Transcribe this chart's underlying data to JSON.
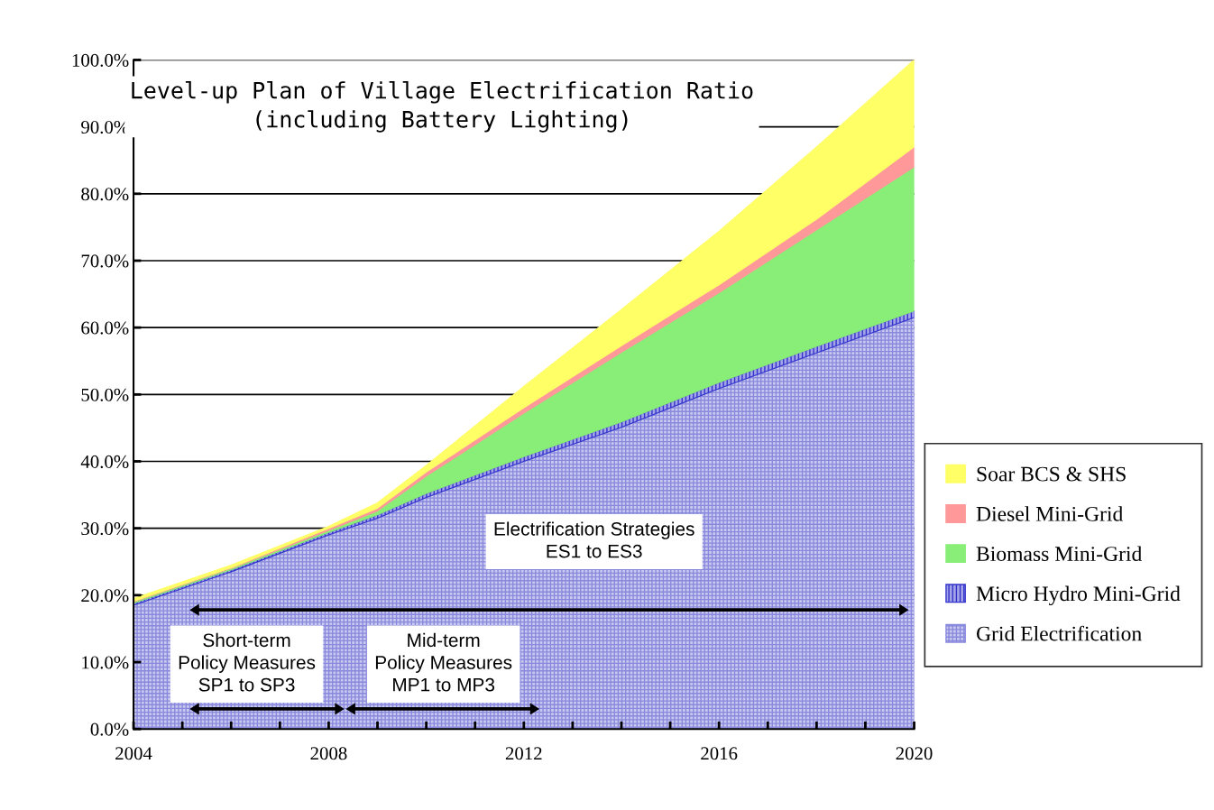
{
  "chart_data": {
    "type": "area",
    "stacked": true,
    "title": "Level-up Plan of Village Electrification Ratio\n(including Battery Lighting)",
    "x": [
      2004,
      2006,
      2008,
      2009,
      2010,
      2012,
      2014,
      2016,
      2018,
      2020
    ],
    "series": [
      {
        "name": "Grid Electrification",
        "color": "#8888dd",
        "values": [
          18.5,
          23.5,
          29.0,
          31.5,
          34.6,
          40.0,
          45.1,
          50.9,
          56.2,
          61.5
        ]
      },
      {
        "name": "Micro Hydro Mini-Grid",
        "color": "#3333cc",
        "values": [
          0.3,
          0.3,
          0.4,
          0.5,
          0.6,
          0.7,
          0.8,
          0.9,
          1.0,
          1.0
        ]
      },
      {
        "name": "Biomass Mini-Grid",
        "color": "#88ee77",
        "values": [
          0.2,
          0.2,
          0.3,
          0.6,
          2.6,
          6.5,
          10.4,
          13.4,
          17.4,
          21.5
        ]
      },
      {
        "name": "Diesel Mini-Grid",
        "color": "#ff9999",
        "values": [
          0.1,
          0.1,
          0.3,
          0.4,
          0.6,
          0.8,
          1.0,
          1.2,
          1.6,
          3.0
        ]
      },
      {
        "name": "Soar BCS & SHS",
        "color": "#ffff66",
        "values": [
          0.4,
          0.4,
          0.3,
          0.8,
          1.0,
          3.2,
          5.4,
          8.0,
          10.8,
          13.0
        ]
      }
    ],
    "xlim": [
      2004,
      2020
    ],
    "xticks": [
      2004,
      {
        "value": 2005,
        "label": null
      },
      {
        "value": 2006,
        "label": null
      },
      {
        "value": 2007,
        "label": null
      },
      2008,
      {
        "value": 2009,
        "label": null
      },
      {
        "value": 2010,
        "label": null
      },
      {
        "value": 2011,
        "label": null
      },
      2012,
      {
        "value": 2013,
        "label": null
      },
      {
        "value": 2014,
        "label": null
      },
      {
        "value": 2015,
        "label": null
      },
      2016,
      {
        "value": 2017,
        "label": null
      },
      {
        "value": 2018,
        "label": null
      },
      {
        "value": 2019,
        "label": null
      },
      2020
    ],
    "ylim": [
      0,
      100
    ],
    "yticks": [
      {
        "value": 0,
        "label": "0.0%"
      },
      {
        "value": 10,
        "label": "10.0%"
      },
      {
        "value": 20,
        "label": "20.0%"
      },
      {
        "value": 30,
        "label": "30.0%"
      },
      {
        "value": 40,
        "label": "40.0%"
      },
      {
        "value": 50,
        "label": "50.0%"
      },
      {
        "value": 60,
        "label": "60.0%"
      },
      {
        "value": 70,
        "label": "70.0%"
      },
      {
        "value": 80,
        "label": "80.0%"
      },
      {
        "value": 90,
        "label": "90.0%"
      },
      {
        "value": 100,
        "label": "100.0%"
      }
    ],
    "grid": "y",
    "legend": "right",
    "annotations": [
      "Electrification Strategies\nES1 to ES3",
      "Short-term\nPolicy Measures\nSP1 to SP3",
      "Mid-term\nPolicy Measures\nMP1 to MP3"
    ]
  }
}
